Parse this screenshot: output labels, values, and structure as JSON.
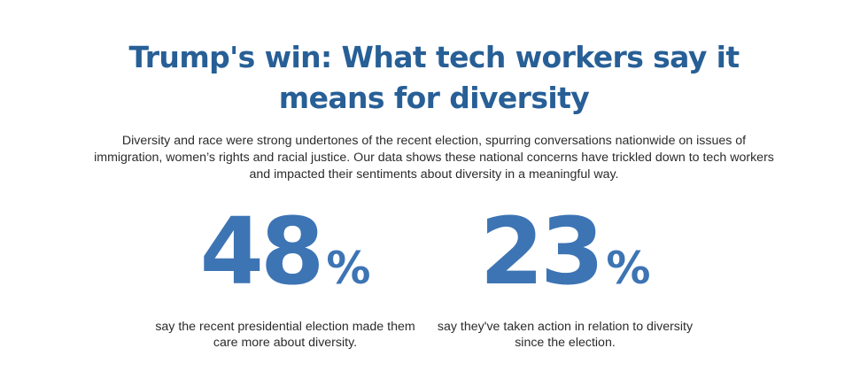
{
  "title": "Trump's win: What tech workers say it means for diversity",
  "intro": "Diversity and race were strong undertones of the recent election, spurring conversations nationwide on issues of immigration, women’s rights and racial justice. Our data shows these national concerns have trickled down to tech workers and impacted their sentiments about diversity in a meaningful way.",
  "stats": [
    {
      "value": "48",
      "unit": "%",
      "caption": "say the recent presidential election made them care more about diversity."
    },
    {
      "value": "23",
      "unit": "%",
      "caption": "say they've taken action in relation to diversity since the election."
    }
  ],
  "colors": {
    "title": "#275f96",
    "stat_number": "#3d74b4",
    "body_text": "#2b2b2b",
    "background": "#ffffff"
  }
}
